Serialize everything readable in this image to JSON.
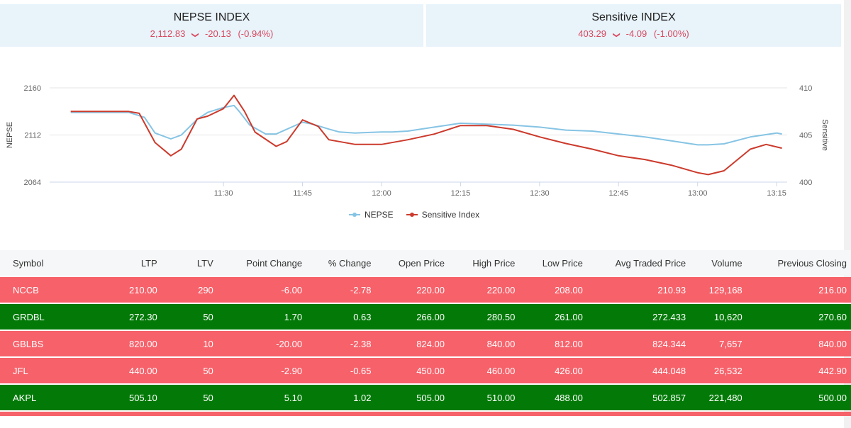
{
  "nepse": {
    "title": "NEPSE INDEX",
    "value": "2,112.83",
    "change": "-20.13",
    "pct": "(-0.94%)",
    "arrow": "❯"
  },
  "sensitive": {
    "title": "Sensitive INDEX",
    "value": "403.29",
    "change": "-4.09",
    "pct": "(-1.00%)",
    "arrow": "❯"
  },
  "colors": {
    "nepse_line": "#86c4e4",
    "sensitive_line": "#cc3a2c",
    "down_row": "#f6616a",
    "up_row": "#037a08"
  },
  "chart_data": {
    "type": "line",
    "x_ticks": [
      "11:30",
      "11:45",
      "12:00",
      "12:15",
      "12:30",
      "12:45",
      "13:00",
      "13:15"
    ],
    "y_left": {
      "label": "NEPSE",
      "ticks": [
        "2160",
        "2112",
        "2064"
      ],
      "range": [
        2064,
        2160
      ]
    },
    "y_right": {
      "label": "Sensitive",
      "ticks": [
        "410",
        "405",
        "400"
      ],
      "range": [
        400,
        410
      ]
    },
    "legend_position": "bottom",
    "series": [
      {
        "name": "NEPSE",
        "axis": "left",
        "points": [
          [
            "11:01",
            2135
          ],
          [
            "11:12",
            2135
          ],
          [
            "11:15",
            2130
          ],
          [
            "11:17",
            2114
          ],
          [
            "11:20",
            2108
          ],
          [
            "11:22",
            2112
          ],
          [
            "11:25",
            2128
          ],
          [
            "11:27",
            2135
          ],
          [
            "11:30",
            2140
          ],
          [
            "11:32",
            2142
          ],
          [
            "11:33",
            2136
          ],
          [
            "11:35",
            2122
          ],
          [
            "11:38",
            2113
          ],
          [
            "11:40",
            2113
          ],
          [
            "11:45",
            2125
          ],
          [
            "11:47",
            2123
          ],
          [
            "11:50",
            2118
          ],
          [
            "11:52",
            2115
          ],
          [
            "11:55",
            2114
          ],
          [
            "12:00",
            2115
          ],
          [
            "12:02",
            2115
          ],
          [
            "12:05",
            2116
          ],
          [
            "12:10",
            2120
          ],
          [
            "12:15",
            2124
          ],
          [
            "12:20",
            2123
          ],
          [
            "12:25",
            2122
          ],
          [
            "12:30",
            2120
          ],
          [
            "12:35",
            2117
          ],
          [
            "12:40",
            2116
          ],
          [
            "12:45",
            2113
          ],
          [
            "12:50",
            2110
          ],
          [
            "12:55",
            2106
          ],
          [
            "13:00",
            2102
          ],
          [
            "13:02",
            2102
          ],
          [
            "13:05",
            2103
          ],
          [
            "13:10",
            2110
          ],
          [
            "13:15",
            2114
          ],
          [
            "13:16",
            2113
          ]
        ]
      },
      {
        "name": "Sensitive Index",
        "axis": "right",
        "points": [
          [
            "11:01",
            407.5
          ],
          [
            "11:12",
            407.5
          ],
          [
            "11:14",
            407.3
          ],
          [
            "11:17",
            404.2
          ],
          [
            "11:20",
            402.8
          ],
          [
            "11:22",
            403.5
          ],
          [
            "11:25",
            406.7
          ],
          [
            "11:27",
            407.0
          ],
          [
            "11:30",
            407.8
          ],
          [
            "11:32",
            409.2
          ],
          [
            "11:34",
            407.5
          ],
          [
            "11:36",
            405.3
          ],
          [
            "11:40",
            403.8
          ],
          [
            "11:42",
            404.3
          ],
          [
            "11:45",
            406.6
          ],
          [
            "11:48",
            405.9
          ],
          [
            "11:50",
            404.5
          ],
          [
            "11:55",
            404.0
          ],
          [
            "12:00",
            404.0
          ],
          [
            "12:05",
            404.5
          ],
          [
            "12:10",
            405.1
          ],
          [
            "12:15",
            406.0
          ],
          [
            "12:20",
            406.0
          ],
          [
            "12:25",
            405.6
          ],
          [
            "12:30",
            404.8
          ],
          [
            "12:35",
            404.1
          ],
          [
            "12:40",
            403.5
          ],
          [
            "12:45",
            402.8
          ],
          [
            "12:50",
            402.4
          ],
          [
            "12:55",
            401.8
          ],
          [
            "13:00",
            401.0
          ],
          [
            "13:02",
            400.8
          ],
          [
            "13:05",
            401.2
          ],
          [
            "13:10",
            403.5
          ],
          [
            "13:13",
            404.0
          ],
          [
            "13:16",
            403.6
          ]
        ]
      }
    ]
  },
  "table": {
    "headers": [
      "Symbol",
      "LTP",
      "LTV",
      "Point Change",
      "% Change",
      "Open Price",
      "High Price",
      "Low Price",
      "Avg Traded Price",
      "Volume",
      "Previous Closing"
    ],
    "rows": [
      {
        "dir": "down",
        "cells": [
          "NCCB",
          "210.00",
          "290",
          "-6.00",
          "-2.78",
          "220.00",
          "220.00",
          "208.00",
          "210.93",
          "129,168",
          "216.00"
        ]
      },
      {
        "dir": "up",
        "cells": [
          "GRDBL",
          "272.30",
          "50",
          "1.70",
          "0.63",
          "266.00",
          "280.50",
          "261.00",
          "272.433",
          "10,620",
          "270.60"
        ]
      },
      {
        "dir": "down",
        "cells": [
          "GBLBS",
          "820.00",
          "10",
          "-20.00",
          "-2.38",
          "824.00",
          "840.00",
          "812.00",
          "824.344",
          "7,657",
          "840.00"
        ]
      },
      {
        "dir": "down",
        "cells": [
          "JFL",
          "440.00",
          "50",
          "-2.90",
          "-0.65",
          "450.00",
          "460.00",
          "426.00",
          "444.048",
          "26,532",
          "442.90"
        ]
      },
      {
        "dir": "up",
        "cells": [
          "AKPL",
          "505.10",
          "50",
          "5.10",
          "1.02",
          "505.00",
          "510.00",
          "488.00",
          "502.857",
          "221,480",
          "500.00"
        ]
      }
    ]
  }
}
